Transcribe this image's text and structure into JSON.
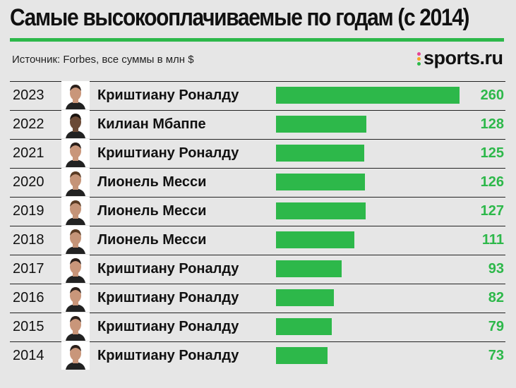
{
  "title": "Самые высокооплачиваемые по годам (с 2014)",
  "source": "Источник: Forbes, все суммы в млн $",
  "logo": {
    "text": "sports.ru",
    "dot_colors": [
      "#e84393",
      "#f5a623",
      "#2db84a"
    ]
  },
  "colors": {
    "accent": "#2db84a",
    "background": "#e6e6e6"
  },
  "chart_data": {
    "type": "bar",
    "orientation": "horizontal",
    "xlim": [
      0,
      260
    ],
    "rows": [
      {
        "year": "2023",
        "player": "Криштиану Роналду",
        "value": 260,
        "photo": "ronaldo-photo"
      },
      {
        "year": "2022",
        "player": "Килиан Мбаппе",
        "value": 128,
        "photo": "mbappe-photo"
      },
      {
        "year": "2021",
        "player": "Криштиану Роналду",
        "value": 125,
        "photo": "ronaldo-photo"
      },
      {
        "year": "2020",
        "player": "Лионель Месси",
        "value": 126,
        "photo": "messi-photo"
      },
      {
        "year": "2019",
        "player": "Лионель Месси",
        "value": 127,
        "photo": "messi-photo"
      },
      {
        "year": "2018",
        "player": "Лионель Месси",
        "value": 111,
        "photo": "messi-photo"
      },
      {
        "year": "2017",
        "player": "Криштиану Роналду",
        "value": 93,
        "photo": "ronaldo-photo"
      },
      {
        "year": "2016",
        "player": "Криштиану Роналду",
        "value": 82,
        "photo": "ronaldo-photo"
      },
      {
        "year": "2015",
        "player": "Криштиану Роналду",
        "value": 79,
        "photo": "ronaldo-photo"
      },
      {
        "year": "2014",
        "player": "Криштиану Роналду",
        "value": 73,
        "photo": "ronaldo-photo"
      }
    ]
  }
}
